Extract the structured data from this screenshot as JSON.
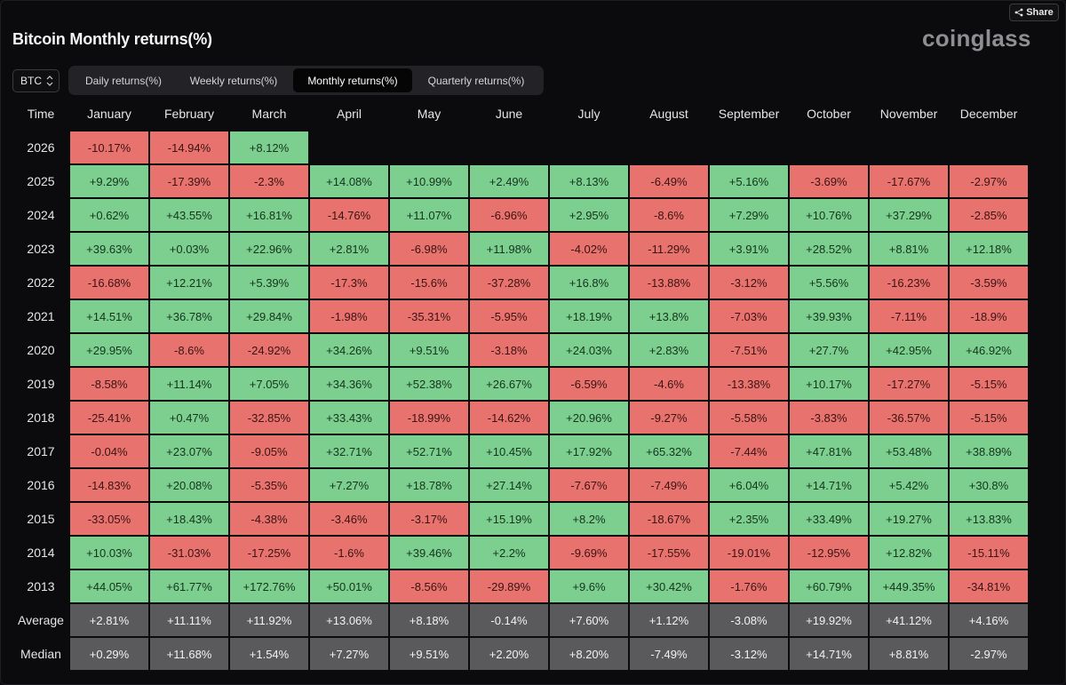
{
  "header": {
    "share_label": "Share",
    "title": "Bitcoin Monthly returns(%)",
    "brand": "coinglass"
  },
  "asset_select": {
    "value": "BTC"
  },
  "tabs": [
    {
      "label": "Daily returns(%)",
      "active": false
    },
    {
      "label": "Weekly returns(%)",
      "active": false
    },
    {
      "label": "Monthly returns(%)",
      "active": true
    },
    {
      "label": "Quarterly returns(%)",
      "active": false
    }
  ],
  "colors": {
    "positive": "#7ccf8e",
    "negative": "#e8736e",
    "summary": "#5a5a5d",
    "active_tab": "#050506"
  },
  "table": {
    "columns": [
      "Time",
      "January",
      "February",
      "March",
      "April",
      "May",
      "June",
      "July",
      "August",
      "September",
      "October",
      "November",
      "December"
    ],
    "rows": [
      {
        "label": "2026",
        "cells": [
          "-10.17%",
          "-14.94%",
          "+8.12%",
          "",
          "",
          "",
          "",
          "",
          "",
          "",
          "",
          ""
        ]
      },
      {
        "label": "2025",
        "cells": [
          "+9.29%",
          "-17.39%",
          "-2.3%",
          "+14.08%",
          "+10.99%",
          "+2.49%",
          "+8.13%",
          "-6.49%",
          "+5.16%",
          "-3.69%",
          "-17.67%",
          "-2.97%"
        ]
      },
      {
        "label": "2024",
        "cells": [
          "+0.62%",
          "+43.55%",
          "+16.81%",
          "-14.76%",
          "+11.07%",
          "-6.96%",
          "+2.95%",
          "-8.6%",
          "+7.29%",
          "+10.76%",
          "+37.29%",
          "-2.85%"
        ]
      },
      {
        "label": "2023",
        "cells": [
          "+39.63%",
          "+0.03%",
          "+22.96%",
          "+2.81%",
          "-6.98%",
          "+11.98%",
          "-4.02%",
          "-11.29%",
          "+3.91%",
          "+28.52%",
          "+8.81%",
          "+12.18%"
        ]
      },
      {
        "label": "2022",
        "cells": [
          "-16.68%",
          "+12.21%",
          "+5.39%",
          "-17.3%",
          "-15.6%",
          "-37.28%",
          "+16.8%",
          "-13.88%",
          "-3.12%",
          "+5.56%",
          "-16.23%",
          "-3.59%"
        ]
      },
      {
        "label": "2021",
        "cells": [
          "+14.51%",
          "+36.78%",
          "+29.84%",
          "-1.98%",
          "-35.31%",
          "-5.95%",
          "+18.19%",
          "+13.8%",
          "-7.03%",
          "+39.93%",
          "-7.11%",
          "-18.9%"
        ]
      },
      {
        "label": "2020",
        "cells": [
          "+29.95%",
          "-8.6%",
          "-24.92%",
          "+34.26%",
          "+9.51%",
          "-3.18%",
          "+24.03%",
          "+2.83%",
          "-7.51%",
          "+27.7%",
          "+42.95%",
          "+46.92%"
        ]
      },
      {
        "label": "2019",
        "cells": [
          "-8.58%",
          "+11.14%",
          "+7.05%",
          "+34.36%",
          "+52.38%",
          "+26.67%",
          "-6.59%",
          "-4.6%",
          "-13.38%",
          "+10.17%",
          "-17.27%",
          "-5.15%"
        ]
      },
      {
        "label": "2018",
        "cells": [
          "-25.41%",
          "+0.47%",
          "-32.85%",
          "+33.43%",
          "-18.99%",
          "-14.62%",
          "+20.96%",
          "-9.27%",
          "-5.58%",
          "-3.83%",
          "-36.57%",
          "-5.15%"
        ]
      },
      {
        "label": "2017",
        "cells": [
          "-0.04%",
          "+23.07%",
          "-9.05%",
          "+32.71%",
          "+52.71%",
          "+10.45%",
          "+17.92%",
          "+65.32%",
          "-7.44%",
          "+47.81%",
          "+53.48%",
          "+38.89%"
        ]
      },
      {
        "label": "2016",
        "cells": [
          "-14.83%",
          "+20.08%",
          "-5.35%",
          "+7.27%",
          "+18.78%",
          "+27.14%",
          "-7.67%",
          "-7.49%",
          "+6.04%",
          "+14.71%",
          "+5.42%",
          "+30.8%"
        ]
      },
      {
        "label": "2015",
        "cells": [
          "-33.05%",
          "+18.43%",
          "-4.38%",
          "-3.46%",
          "-3.17%",
          "+15.19%",
          "+8.2%",
          "-18.67%",
          "+2.35%",
          "+33.49%",
          "+19.27%",
          "+13.83%"
        ]
      },
      {
        "label": "2014",
        "cells": [
          "+10.03%",
          "-31.03%",
          "-17.25%",
          "-1.6%",
          "+39.46%",
          "+2.2%",
          "-9.69%",
          "-17.55%",
          "-19.01%",
          "-12.95%",
          "+12.82%",
          "-15.11%"
        ]
      },
      {
        "label": "2013",
        "cells": [
          "+44.05%",
          "+61.77%",
          "+172.76%",
          "+50.01%",
          "-8.56%",
          "-29.89%",
          "+9.6%",
          "+30.42%",
          "-1.76%",
          "+60.79%",
          "+449.35%",
          "-34.81%"
        ]
      }
    ],
    "summary_rows": [
      {
        "label": "Average",
        "cells": [
          "+2.81%",
          "+11.11%",
          "+11.92%",
          "+13.06%",
          "+8.18%",
          "-0.14%",
          "+7.60%",
          "+1.12%",
          "-3.08%",
          "+19.92%",
          "+41.12%",
          "+4.16%"
        ]
      },
      {
        "label": "Median",
        "cells": [
          "+0.29%",
          "+11.68%",
          "+1.54%",
          "+7.27%",
          "+9.51%",
          "+2.20%",
          "+8.20%",
          "-7.49%",
          "-3.12%",
          "+14.71%",
          "+8.81%",
          "-2.97%"
        ]
      }
    ]
  }
}
